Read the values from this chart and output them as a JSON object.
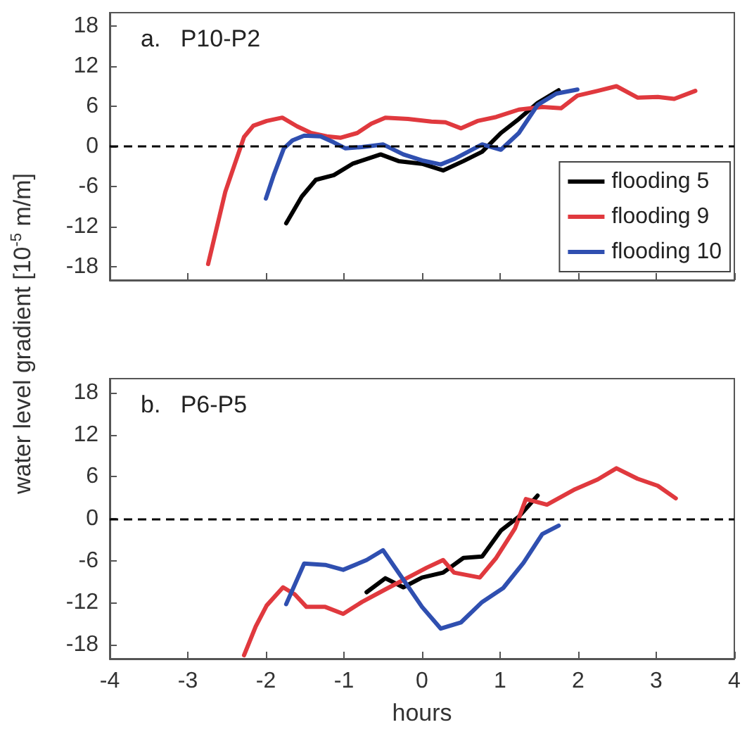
{
  "chart_data": [
    {
      "type": "line",
      "title": "a.   P10-P2",
      "ylabel": "water level gradient [10$^{-5}$ m/m]",
      "xlim": [
        -4,
        4
      ],
      "xticks": [
        -4,
        -3,
        -2,
        -1,
        0,
        1,
        2,
        3,
        4
      ],
      "ylim": [
        -20,
        20
      ],
      "yticks": [
        -18,
        -12,
        -6,
        0,
        6,
        12,
        18
      ],
      "tick_labels": "y",
      "legend": "bottom right",
      "marker": "none",
      "grid": false,
      "ref_lines": [
        {
          "axis": "y",
          "value": 0,
          "color": "#000000",
          "line_style": "dashed"
        }
      ],
      "series": [
        {
          "name": "flooding 5",
          "color": "#000000",
          "x": [
            -1.74,
            -1.54,
            -1.36,
            -1.13,
            -0.89,
            -0.53,
            -0.3,
            0,
            0.27,
            0.53,
            0.77,
            1.01,
            1.24,
            1.48,
            1.75
          ],
          "values": [
            -11.5,
            -7.5,
            -5.0,
            -4.3,
            -2.6,
            -1.2,
            -2.2,
            -2.6,
            -3.6,
            -2.2,
            -0.8,
            2.0,
            4.1,
            6.5,
            8.4
          ]
        },
        {
          "name": "flooding 9",
          "color": "#e0393e",
          "x": [
            -2.74,
            -2.52,
            -2.28,
            -2.16,
            -1.99,
            -1.79,
            -1.6,
            -1.42,
            -1.22,
            -1.04,
            -0.83,
            -0.65,
            -0.47,
            -0.18,
            0.12,
            0.3,
            0.5,
            0.71,
            0.95,
            1.24,
            1.54,
            1.78,
            1.99,
            2.25,
            2.49,
            2.76,
            3.02,
            3.23,
            3.5
          ],
          "values": [
            -17.6,
            -6.8,
            1.4,
            3.1,
            3.8,
            4.3,
            3.0,
            2.0,
            1.5,
            1.3,
            2.0,
            3.4,
            4.3,
            4.1,
            3.7,
            3.6,
            2.7,
            3.8,
            4.4,
            5.5,
            5.9,
            5.7,
            7.6,
            8.3,
            9.0,
            7.3,
            7.4,
            7.1,
            8.3
          ]
        },
        {
          "name": "flooding 10",
          "color": "#2f4fb0",
          "x": [
            -2.0,
            -1.9,
            -1.77,
            -1.66,
            -1.51,
            -1.3,
            -1.13,
            -0.98,
            -0.77,
            -0.5,
            -0.24,
            0,
            0.24,
            0.41,
            0.59,
            0.77,
            1.01,
            1.24,
            1.48,
            1.72,
            1.99
          ],
          "values": [
            -7.8,
            -4.3,
            -0.3,
            0.9,
            1.6,
            1.5,
            0.6,
            -0.3,
            -0.1,
            0.3,
            -1.2,
            -2.1,
            -2.7,
            -1.9,
            -0.8,
            0.3,
            -0.5,
            2.0,
            6.2,
            7.9,
            8.5
          ]
        }
      ]
    },
    {
      "type": "line",
      "title": "b.   P6-P5",
      "xlabel": "hours",
      "xlim": [
        -4,
        4
      ],
      "xticks": [
        -4,
        -3,
        -2,
        -1,
        0,
        1,
        2,
        3,
        4
      ],
      "ylim": [
        -20,
        20
      ],
      "yticks": [
        -18,
        -12,
        -6,
        0,
        6,
        12,
        18
      ],
      "marker": "none",
      "grid": false,
      "ref_lines": [
        {
          "axis": "y",
          "value": 0,
          "color": "#000000",
          "line_style": "dashed"
        }
      ],
      "series": [
        {
          "color": "#000000",
          "x": [
            -0.71,
            -0.47,
            -0.24,
            0,
            0.27,
            0.53,
            0.77,
            1.01,
            1.24,
            1.48
          ],
          "values": [
            -10.5,
            -8.5,
            -9.8,
            -8.4,
            -7.7,
            -5.6,
            -5.4,
            -1.7,
            0.3,
            3.3
          ]
        },
        {
          "color": "#e0393e",
          "x": [
            -2.28,
            -2.13,
            -1.99,
            -1.78,
            -1.63,
            -1.48,
            -1.24,
            -1.01,
            -0.77,
            -0.47,
            -0.18,
            0.06,
            0.27,
            0.41,
            0.74,
            0.95,
            1.19,
            1.33,
            1.6,
            1.96,
            2.25,
            2.49,
            2.76,
            3.02,
            3.25
          ],
          "values": [
            -19.5,
            -15.4,
            -12.4,
            -9.8,
            -10.8,
            -12.6,
            -12.6,
            -13.6,
            -11.9,
            -10.1,
            -8.4,
            -7.0,
            -5.9,
            -7.7,
            -8.4,
            -5.6,
            -1.4,
            2.8,
            2.0,
            4.2,
            5.6,
            7.2,
            5.7,
            4.7,
            2.9
          ]
        },
        {
          "color": "#2f4fb0",
          "x": [
            -1.74,
            -1.51,
            -1.24,
            -1.01,
            -0.71,
            -0.5,
            -0.24,
            0,
            0.24,
            0.5,
            0.77,
            1.04,
            1.3,
            1.54,
            1.75
          ],
          "values": [
            -12.2,
            -6.4,
            -6.6,
            -7.3,
            -5.9,
            -4.5,
            -8.7,
            -12.6,
            -15.7,
            -14.8,
            -11.9,
            -9.9,
            -6.3,
            -2.2,
            -1.0
          ]
        }
      ]
    }
  ]
}
